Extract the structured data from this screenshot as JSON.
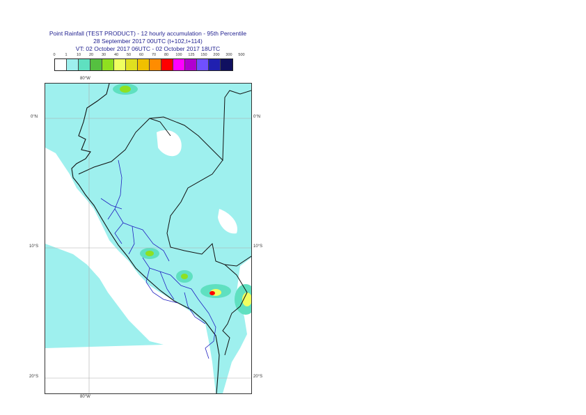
{
  "title": {
    "line1": "Point Rainfall (TEST PRODUCT) - 12 hourly accumulation - 95th Percentile",
    "line2": "28 September 2017 00UTC (t+102,t+114)",
    "line3": "VT: 02 October 2017 06UTC - 02 October 2017 18UTC"
  },
  "legend": {
    "ticks": [
      "0",
      "1",
      "10",
      "20",
      "30",
      "40",
      "50",
      "60",
      "70",
      "80",
      "100",
      "125",
      "150",
      "200",
      "300",
      "500"
    ],
    "colors": [
      "#ffffff",
      "#9ef0ee",
      "#5fe0c0",
      "#55c040",
      "#8fe020",
      "#f0ff60",
      "#e0e020",
      "#f0c000",
      "#ff8c00",
      "#ff0000",
      "#ff00ff",
      "#b000d0",
      "#7050ff",
      "#2020b0",
      "#101060"
    ]
  },
  "axes": {
    "lon_top": "80°W",
    "lon_bottom": "80°W",
    "lat_left": [
      "0°N",
      "10°S",
      "20°S"
    ],
    "lat_right": [
      "0°N",
      "10°S",
      "20°S"
    ]
  },
  "colors": {
    "border": "#111111",
    "regions": "#2020c0",
    "grid": "#aaaaaa"
  }
}
